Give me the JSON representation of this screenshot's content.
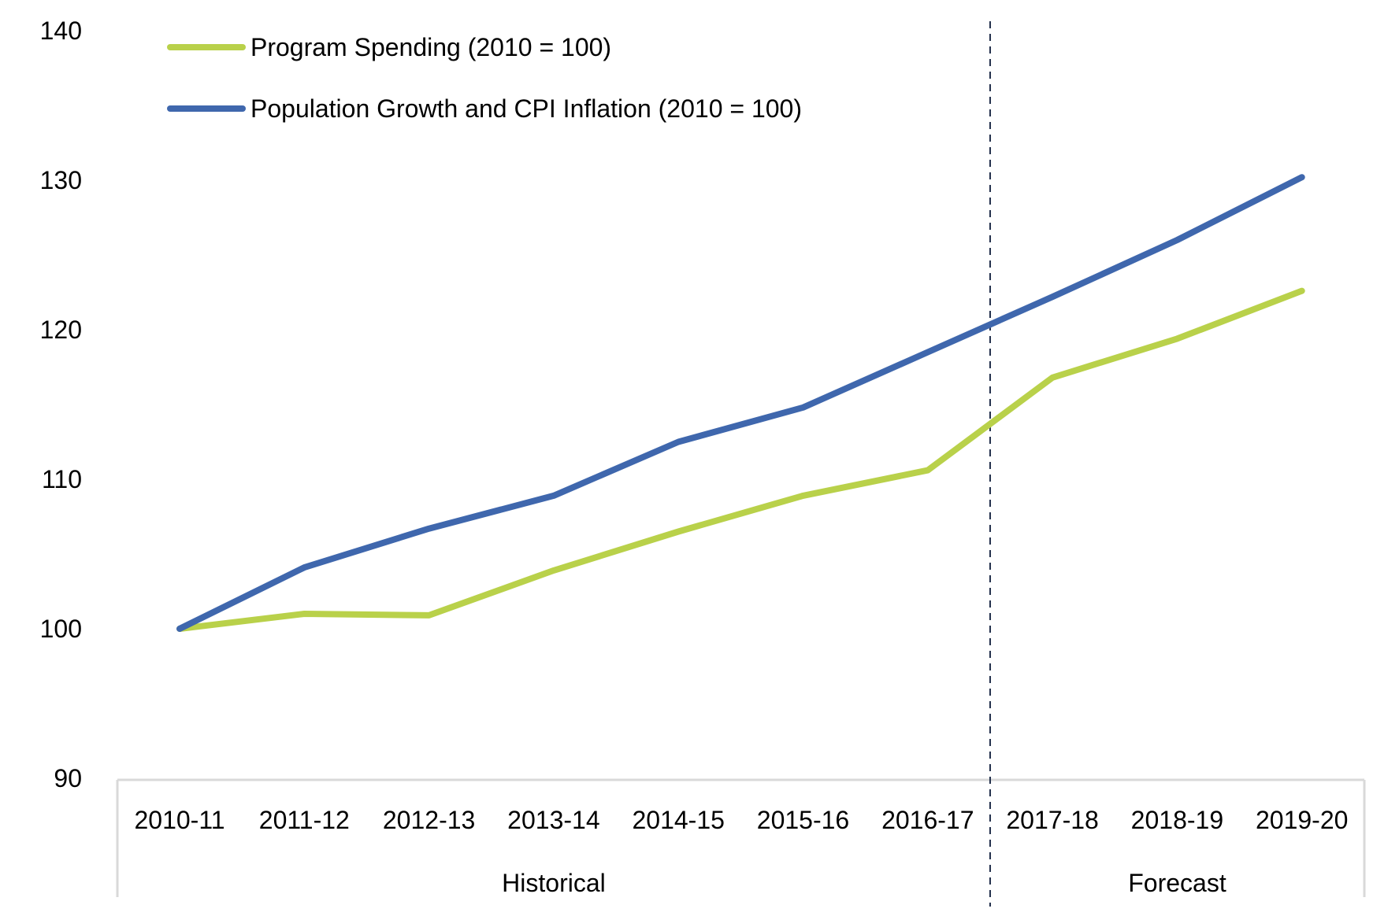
{
  "chart_data": {
    "type": "line",
    "title": "",
    "xlabel": "",
    "ylabel": "",
    "ylim": [
      90,
      140
    ],
    "yticks": [
      90,
      100,
      110,
      120,
      130,
      140
    ],
    "grid": false,
    "legend_position": "top-left",
    "categories": [
      "2010-11",
      "2011-12",
      "2012-13",
      "2013-14",
      "2014-15",
      "2015-16",
      "2016-17",
      "2017-18",
      "2018-19",
      "2019-20"
    ],
    "category_groups": [
      {
        "label": "Historical",
        "from": "2010-11",
        "to": "2016-17"
      },
      {
        "label": "Forecast",
        "from": "2017-18",
        "to": "2019-20"
      }
    ],
    "divider": {
      "between": [
        "2016-17",
        "2017-18"
      ],
      "style": "dashed"
    },
    "series": [
      {
        "name": "Program Spending (2010 = 100)",
        "color": "#b9d14a",
        "values": [
          100.0,
          101.0,
          100.9,
          103.9,
          106.5,
          108.9,
          110.6,
          116.8,
          119.4,
          122.6
        ]
      },
      {
        "name": "Population Growth and CPI Inflation (2010 = 100)",
        "color": "#3f67ad",
        "values": [
          100.0,
          104.1,
          106.7,
          108.9,
          112.5,
          114.8,
          118.5,
          122.2,
          126.0,
          130.2
        ]
      }
    ]
  },
  "colors": {
    "axis": "#d9d9d9",
    "divider": "#1f2d4a"
  }
}
